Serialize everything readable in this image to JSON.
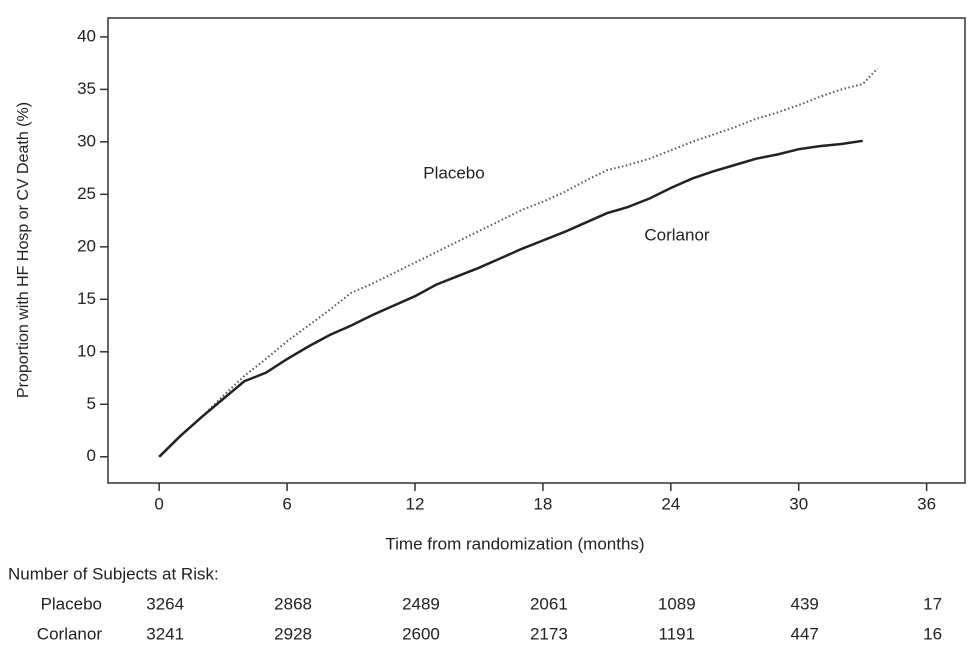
{
  "chart_data": {
    "type": "line",
    "x_label": "Time from randomization (months)",
    "y_label": "Proportion with HF Hosp or CV Death (%)",
    "xlim": [
      -2.4,
      37.8
    ],
    "ylim": [
      -2.5,
      41.8
    ],
    "xticks": [
      0,
      6,
      12,
      18,
      24,
      30,
      36
    ],
    "yticks": [
      0,
      5,
      10,
      15,
      20,
      25,
      30,
      35,
      40
    ],
    "series": [
      {
        "name": "Placebo",
        "color": "#555555",
        "dash": "dotted",
        "x": [
          0,
          1,
          2,
          3,
          4,
          5,
          6,
          7,
          8,
          9,
          10,
          11,
          12,
          13,
          14,
          15,
          16,
          17,
          18,
          19,
          20,
          21,
          22,
          23,
          24,
          25,
          26,
          27,
          28,
          29,
          30,
          31,
          32,
          33,
          33.7
        ],
        "values": [
          0,
          2,
          3.8,
          5.8,
          7.7,
          9.3,
          11,
          12.5,
          14,
          15.6,
          16.5,
          17.5,
          18.5,
          19.5,
          20.5,
          21.5,
          22.5,
          23.5,
          24.3,
          25.2,
          26.3,
          27.3,
          27.8,
          28.4,
          29.2,
          30,
          30.7,
          31.4,
          32.2,
          32.8,
          33.5,
          34.3,
          35,
          35.5,
          37
        ]
      },
      {
        "name": "Corlanor",
        "color": "#222222",
        "dash": "solid",
        "x": [
          0,
          1,
          2,
          3,
          4,
          5,
          6,
          7,
          8,
          9,
          10,
          11,
          12,
          13,
          14,
          15,
          16,
          17,
          18,
          19,
          20,
          21,
          22,
          23,
          24,
          25,
          26,
          27,
          28,
          29,
          30,
          31,
          32,
          33
        ],
        "values": [
          0,
          2,
          3.8,
          5.5,
          7.2,
          8,
          9.3,
          10.5,
          11.6,
          12.5,
          13.5,
          14.4,
          15.3,
          16.4,
          17.2,
          18,
          18.9,
          19.8,
          20.6,
          21.4,
          22.3,
          23.2,
          23.8,
          24.6,
          25.6,
          26.5,
          27.2,
          27.8,
          28.4,
          28.8,
          29.3,
          29.6,
          29.8,
          30.1
        ]
      }
    ],
    "annotations": [
      "Placebo",
      "Corlanor"
    ]
  },
  "risk_table": {
    "title": "Number of Subjects at Risk:",
    "rows": [
      {
        "name": "Placebo",
        "values": [
          "3264",
          "2868",
          "2489",
          "2061",
          "1089",
          "439",
          "17"
        ]
      },
      {
        "name": "Corlanor",
        "values": [
          "3241",
          "2928",
          "2600",
          "2173",
          "1191",
          "447",
          "16"
        ]
      }
    ]
  }
}
